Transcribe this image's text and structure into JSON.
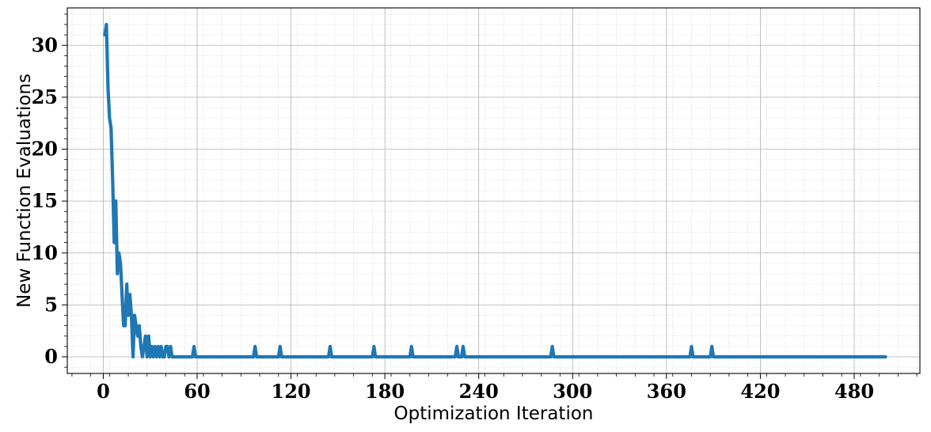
{
  "chart_data": {
    "type": "line",
    "xlabel": "Optimization Iteration",
    "ylabel": "New Function Evaluations",
    "xlim": [
      -23,
      522
    ],
    "ylim": [
      -1.6,
      33.6
    ],
    "xticks": [
      0,
      60,
      120,
      180,
      240,
      300,
      360,
      420,
      480
    ],
    "yticks": [
      0,
      5,
      10,
      15,
      20,
      25,
      30
    ],
    "grid": true,
    "minor_grid": true,
    "legend": false,
    "line_color": "#1f77b4",
    "series": [
      {
        "x": [
          1,
          2,
          3,
          4,
          5,
          6,
          7,
          8,
          9,
          10,
          11,
          12,
          13,
          14,
          15,
          16,
          17,
          18,
          19,
          20,
          21,
          22,
          23,
          24,
          25,
          26,
          27,
          28,
          29,
          30,
          31,
          32,
          33,
          34,
          35,
          36,
          37,
          38,
          39,
          40,
          41,
          42,
          43,
          44,
          45,
          46,
          47,
          48,
          49,
          50,
          56,
          57,
          58,
          59,
          60,
          95,
          96,
          97,
          98,
          99,
          111,
          112,
          113,
          114,
          115,
          143,
          144,
          145,
          146,
          147,
          171,
          172,
          173,
          174,
          175,
          195,
          196,
          197,
          198,
          199,
          224,
          225,
          226,
          227,
          228,
          229,
          230,
          231,
          232,
          285,
          286,
          287,
          288,
          289,
          374,
          375,
          376,
          377,
          378,
          387,
          388,
          389,
          390,
          391,
          500
        ],
        "y": [
          31,
          32,
          26,
          23,
          22,
          17,
          11,
          15,
          8,
          10,
          9,
          6,
          3,
          3,
          7,
          4,
          6,
          4,
          0,
          4,
          3,
          2,
          3,
          1,
          0,
          1,
          2,
          0,
          2,
          0,
          1,
          0,
          1,
          0,
          1,
          0,
          1,
          0,
          0,
          1,
          1,
          0,
          1,
          0,
          0,
          0,
          0,
          0,
          0,
          0,
          0,
          0,
          1,
          0,
          0,
          0,
          0,
          1,
          0,
          0,
          0,
          0,
          1,
          0,
          0,
          0,
          0,
          1,
          0,
          0,
          0,
          0,
          1,
          0,
          0,
          0,
          0,
          1,
          0,
          0,
          0,
          0,
          1,
          0,
          0,
          0,
          1,
          0,
          0,
          0,
          0,
          1,
          0,
          0,
          0,
          0,
          1,
          0,
          0,
          0,
          0,
          1,
          0,
          0,
          0
        ]
      }
    ]
  }
}
